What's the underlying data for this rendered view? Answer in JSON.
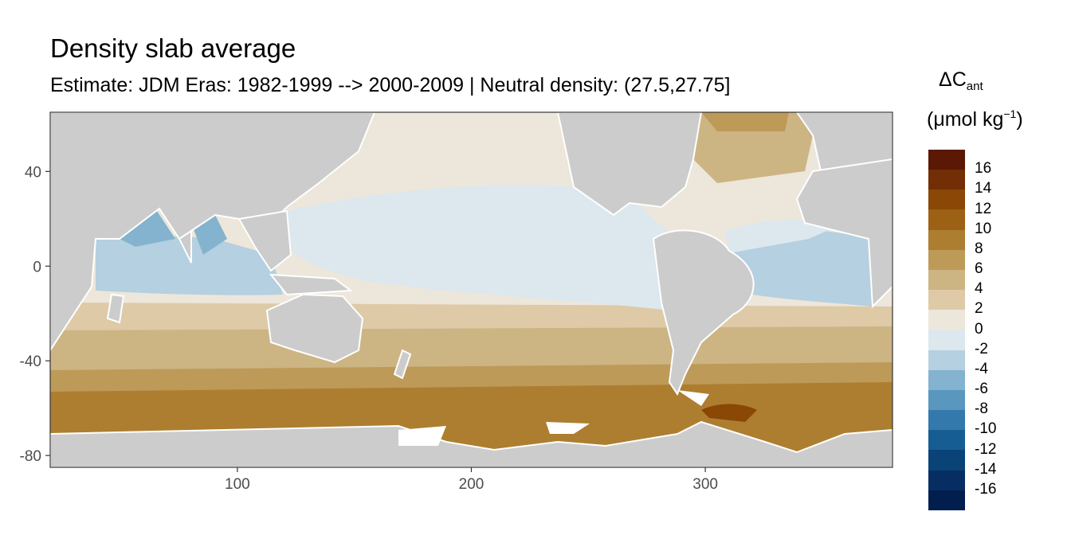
{
  "title": "Density slab average",
  "subtitle": "Estimate: JDM Eras: 1982-1999 --> 2000-2009 | Neutral density: (27.5,27.75]",
  "legend": {
    "title_main": "ΔC",
    "title_sub": "ant",
    "unit_prefix": "(μmol kg",
    "unit_sup": "−1",
    "unit_suffix": ")",
    "labels": [
      "16",
      "14",
      "12",
      "10",
      "8",
      "6",
      "4",
      "2",
      "0",
      "-2",
      "-4",
      "-6",
      "-8",
      "-10",
      "-12",
      "-14",
      "-16"
    ],
    "colors": [
      "#5a1805",
      "#732e06",
      "#8a4706",
      "#9c6114",
      "#ad7e30",
      "#bd9a58",
      "#cdb483",
      "#decaa7",
      "#ede6da",
      "#dce8ee",
      "#b5d0e0",
      "#84b3cf",
      "#5997bf",
      "#3479ab",
      "#165d93",
      "#0a4378",
      "#062e62",
      "#021e4e"
    ]
  },
  "chart_data": {
    "type": "heatmap",
    "title": "Density slab average",
    "subtitle": "Estimate: JDM Eras: 1982-1999 --> 2000-2009 | Neutral density: (27.5,27.75]",
    "xlabel": "",
    "ylabel": "",
    "xlim": [
      20,
      380
    ],
    "ylim": [
      -85,
      65
    ],
    "x_ticks": [
      100,
      200,
      300
    ],
    "y_ticks": [
      40,
      0,
      -40,
      -80
    ],
    "grid": false,
    "legend_position": "right",
    "colors": {
      "land": "#cccccc",
      "no_data": "#ffffff"
    }
  }
}
